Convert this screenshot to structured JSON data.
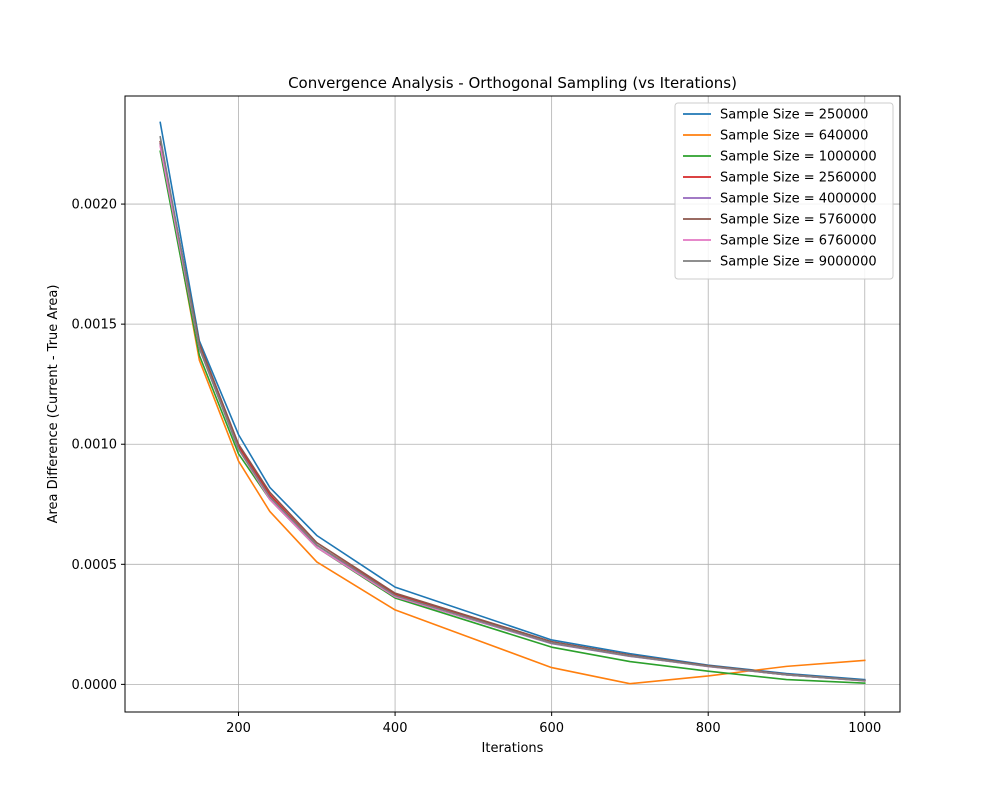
{
  "chart_data": {
    "type": "line",
    "title": "Convergence Analysis - Orthogonal Sampling (vs Iterations)",
    "xlabel": "Iterations",
    "ylabel": "Area Difference (Current - True Area)",
    "xlim": [
      55,
      1045
    ],
    "ylim": [
      -0.000115,
      0.00245
    ],
    "xticks": [
      200,
      400,
      600,
      800,
      1000
    ],
    "xtick_labels": [
      "200",
      "400",
      "600",
      "800",
      "1000"
    ],
    "yticks": [
      0.0,
      0.0005,
      0.001,
      0.0015,
      0.002
    ],
    "ytick_labels": [
      "0.0000",
      "0.0005",
      "0.0010",
      "0.0015",
      "0.0020"
    ],
    "grid": true,
    "legend_position": "top-right",
    "x": [
      100,
      150,
      200,
      240,
      300,
      400,
      600,
      700,
      800,
      900,
      1000
    ],
    "series": [
      {
        "name": "Sample Size = 250000",
        "color": "#1f77b4",
        "values": [
          0.00234,
          0.00143,
          0.00104,
          0.00082,
          0.00062,
          0.000405,
          0.000185,
          0.000128,
          8e-05,
          4.5e-05,
          2e-05
        ]
      },
      {
        "name": "Sample Size = 640000",
        "color": "#ff7f0e",
        "values": [
          0.00225,
          0.00135,
          0.00093,
          0.00072,
          0.00051,
          0.00031,
          7e-05,
          3e-06,
          3.5e-05,
          7.5e-05,
          0.0001
        ]
      },
      {
        "name": "Sample Size = 1000000",
        "color": "#2ca02c",
        "values": [
          0.00222,
          0.00137,
          0.00096,
          0.00077,
          0.00057,
          0.00036,
          0.000155,
          9.5e-05,
          5.5e-05,
          2e-05,
          5e-06
        ]
      },
      {
        "name": "Sample Size = 2560000",
        "color": "#d62728",
        "values": [
          0.00226,
          0.00141,
          0.00099,
          0.00079,
          0.00058,
          0.000375,
          0.000175,
          0.00012,
          7.5e-05,
          4e-05,
          1.5e-05
        ]
      },
      {
        "name": "Sample Size = 4000000",
        "color": "#9467bd",
        "values": [
          0.00225,
          0.0014,
          0.00098,
          0.00078,
          0.00058,
          0.000365,
          0.00017,
          0.000117,
          7.5e-05,
          4e-05,
          1.5e-05
        ]
      },
      {
        "name": "Sample Size = 5760000",
        "color": "#8c564b",
        "values": [
          0.00226,
          0.00142,
          0.001,
          0.0008,
          0.00059,
          0.00038,
          0.000178,
          0.000122,
          7.8e-05,
          4.2e-05,
          1.6e-05
        ]
      },
      {
        "name": "Sample Size = 6760000",
        "color": "#e377c2",
        "values": [
          0.00224,
          0.0014,
          0.00098,
          0.00077,
          0.00057,
          0.000365,
          0.000172,
          0.000118,
          7.4e-05,
          4e-05,
          1.4e-05
        ]
      },
      {
        "name": "Sample Size = 9000000",
        "color": "#7f7f7f",
        "values": [
          0.00228,
          0.0014,
          0.00098,
          0.00078,
          0.00058,
          0.00037,
          0.000172,
          0.000118,
          7.5e-05,
          4e-05,
          1.5e-05
        ]
      }
    ]
  }
}
